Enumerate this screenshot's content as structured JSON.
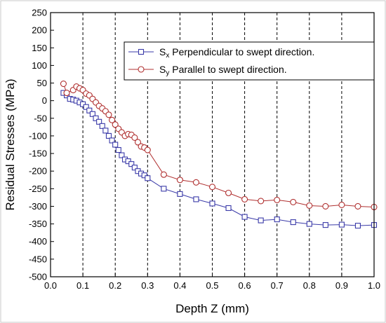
{
  "chart_data": {
    "type": "line",
    "xlabel": "Depth Z (mm)",
    "ylabel": "Residual Stresses (MPa)",
    "xlim": [
      0.0,
      1.0
    ],
    "ylim": [
      -500,
      250
    ],
    "xticks": [
      0.0,
      0.1,
      0.2,
      0.3,
      0.4,
      0.5,
      0.6,
      0.7,
      0.8,
      0.9,
      1.0
    ],
    "xtick_labels": [
      "0.0",
      "0.1",
      "0.2",
      "0.3",
      "0.4",
      "0.5",
      "0.6",
      "0.7",
      "0.8",
      "0.9",
      "1.0"
    ],
    "yticks": [
      -500,
      -450,
      -400,
      -350,
      -300,
      -250,
      -200,
      -150,
      -100,
      -50,
      0,
      50,
      100,
      150,
      200,
      250
    ],
    "ytick_labels": [
      "-500",
      "-450",
      "-400",
      "-350",
      "-300",
      "-250",
      "-200",
      "-150",
      "-100",
      "-50",
      "0",
      "50",
      "100",
      "150",
      "200",
      "250"
    ],
    "grid": "vertical dashed lines only",
    "legend_position": "top-right",
    "series": [
      {
        "name_main": "S",
        "name_sub": "x",
        "name_rest": " Perpendicular to swept direction.",
        "color": "#3a3aa8",
        "marker": "square",
        "x": [
          0.04,
          0.05,
          0.06,
          0.07,
          0.08,
          0.09,
          0.1,
          0.11,
          0.12,
          0.13,
          0.14,
          0.15,
          0.16,
          0.17,
          0.18,
          0.19,
          0.2,
          0.21,
          0.22,
          0.23,
          0.24,
          0.25,
          0.26,
          0.27,
          0.28,
          0.29,
          0.3,
          0.35,
          0.4,
          0.45,
          0.5,
          0.55,
          0.6,
          0.65,
          0.7,
          0.75,
          0.8,
          0.85,
          0.9,
          0.95,
          1.0
        ],
        "y": [
          22,
          15,
          5,
          3,
          0,
          -5,
          -10,
          -18,
          -28,
          -38,
          -50,
          -60,
          -72,
          -85,
          -100,
          -113,
          -125,
          -140,
          -155,
          -167,
          -172,
          -180,
          -190,
          -200,
          -207,
          -212,
          -220,
          -250,
          -265,
          -280,
          -292,
          -305,
          -330,
          -340,
          -337,
          -345,
          -350,
          -353,
          -352,
          -355,
          -353
        ]
      },
      {
        "name_main": "S",
        "name_sub": "y",
        "name_rest": " Parallel to swept direction.",
        "color": "#b03030",
        "marker": "circle",
        "x": [
          0.04,
          0.05,
          0.07,
          0.08,
          0.09,
          0.1,
          0.11,
          0.12,
          0.13,
          0.14,
          0.15,
          0.16,
          0.17,
          0.18,
          0.19,
          0.2,
          0.21,
          0.22,
          0.23,
          0.24,
          0.25,
          0.26,
          0.27,
          0.28,
          0.29,
          0.3,
          0.35,
          0.4,
          0.45,
          0.5,
          0.55,
          0.6,
          0.65,
          0.7,
          0.75,
          0.8,
          0.85,
          0.9,
          0.95,
          1.0
        ],
        "y": [
          48,
          22,
          30,
          40,
          35,
          30,
          20,
          15,
          5,
          -5,
          -15,
          -22,
          -30,
          -40,
          -55,
          -68,
          -80,
          -90,
          -100,
          -95,
          -97,
          -105,
          -118,
          -130,
          -133,
          -140,
          -210,
          -225,
          -232,
          -245,
          -262,
          -280,
          -285,
          -282,
          -288,
          -298,
          -300,
          -296,
          -300,
          -302
        ]
      }
    ]
  }
}
